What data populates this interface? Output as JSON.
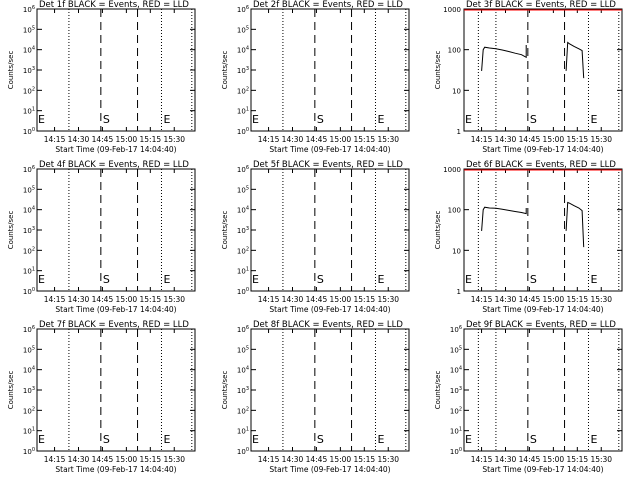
{
  "figure": {
    "time_axis_label": "Start Time (09-Feb-17 14:04:40)",
    "ylabel": "Counts/sec",
    "marker_s": "S",
    "marker_e": "E"
  },
  "chart_data": [
    {
      "detector": "1f",
      "type": "line",
      "title": "Det 1f BLACK = Events, RED = LLD",
      "yscale": "log",
      "ylim": [
        1,
        1000000
      ],
      "ytick_labels": [
        "10^0",
        "10^1",
        "10^2",
        "10^3",
        "10^4",
        "10^5",
        "10^6"
      ],
      "xtick_labels": [
        "14:15",
        "14:30",
        "14:45",
        "15:00",
        "15:15",
        "15:30"
      ],
      "xlim": [
        "14:04",
        "15:43"
      ],
      "dotted_lines": [
        "14:24",
        "15:22",
        "15:41"
      ],
      "dashed_lines": [
        "14:44",
        "15:07"
      ],
      "series": []
    },
    {
      "detector": "2f",
      "type": "line",
      "title": "Det 2f BLACK = Events, RED = LLD",
      "yscale": "log",
      "ylim": [
        1,
        1000000
      ],
      "ytick_labels": [
        "10^0",
        "10^1",
        "10^2",
        "10^3",
        "10^4",
        "10^5",
        "10^6"
      ],
      "xtick_labels": [
        "14:15",
        "14:30",
        "14:45",
        "15:00",
        "15:15",
        "15:30"
      ],
      "xlim": [
        "14:04",
        "15:43"
      ],
      "dotted_lines": [
        "14:24",
        "15:22",
        "15:41"
      ],
      "dashed_lines": [
        "14:44",
        "15:07"
      ],
      "series": []
    },
    {
      "detector": "3f",
      "type": "line",
      "title": "Det 3f BLACK = Events, RED = LLD",
      "yscale": "log",
      "ylim": [
        1,
        1000
      ],
      "ytick_labels": [
        "1",
        "10",
        "100",
        "1000"
      ],
      "xtick_labels": [
        "14:15",
        "14:30",
        "14:45",
        "15:00",
        "15:15",
        "15:30"
      ],
      "xlim": [
        "14:04",
        "15:43"
      ],
      "dotted_lines": [
        "14:13",
        "14:24",
        "15:22",
        "15:41"
      ],
      "dashed_lines": [
        "14:44",
        "15:07"
      ],
      "series": [
        {
          "segments": [
            {
              "x": [
                "14:15",
                "14:16",
                "14:17",
                "14:20",
                "14:24",
                "14:28",
                "14:32",
                "14:36",
                "14:40",
                "14:43",
                "14:43"
              ],
              "y": [
                30,
                100,
                115,
                110,
                105,
                98,
                90,
                82,
                75,
                65,
                130
              ]
            },
            {
              "x": [
                "15:08",
                "15:09",
                "15:10",
                "15:13",
                "15:16",
                "15:18",
                "15:19"
              ],
              "y": [
                30,
                150,
                140,
                120,
                105,
                95,
                20
              ]
            }
          ]
        }
      ]
    },
    {
      "detector": "4f",
      "type": "line",
      "title": "Det 4f BLACK = Events, RED = LLD",
      "yscale": "log",
      "ylim": [
        1,
        1000000
      ],
      "ytick_labels": [
        "10^0",
        "10^1",
        "10^2",
        "10^3",
        "10^4",
        "10^5",
        "10^6"
      ],
      "xtick_labels": [
        "14:15",
        "14:30",
        "14:45",
        "15:00",
        "15:15",
        "15:30"
      ],
      "xlim": [
        "14:04",
        "15:43"
      ],
      "dotted_lines": [
        "14:24",
        "15:22",
        "15:41"
      ],
      "dashed_lines": [
        "14:44",
        "15:07"
      ],
      "series": []
    },
    {
      "detector": "5f",
      "type": "line",
      "title": "Det 5f BLACK = Events, RED = LLD",
      "yscale": "log",
      "ylim": [
        1,
        1000000
      ],
      "ytick_labels": [
        "10^0",
        "10^1",
        "10^2",
        "10^3",
        "10^4",
        "10^5",
        "10^6"
      ],
      "xtick_labels": [
        "14:15",
        "14:30",
        "14:45",
        "15:00",
        "15:15",
        "15:30"
      ],
      "xlim": [
        "14:04",
        "15:43"
      ],
      "dotted_lines": [
        "14:24",
        "15:22",
        "15:41"
      ],
      "dashed_lines": [
        "14:44",
        "15:07"
      ],
      "series": []
    },
    {
      "detector": "6f",
      "type": "line",
      "title": "Det 6f BLACK = Events, RED = LLD",
      "yscale": "log",
      "ylim": [
        1,
        1000
      ],
      "ytick_labels": [
        "1",
        "10",
        "100",
        "1000"
      ],
      "xtick_labels": [
        "14:15",
        "14:30",
        "14:45",
        "15:00",
        "15:15",
        "15:30"
      ],
      "xlim": [
        "14:04",
        "15:43"
      ],
      "dotted_lines": [
        "14:13",
        "14:24",
        "15:22",
        "15:41"
      ],
      "dashed_lines": [
        "14:44",
        "15:07"
      ],
      "series": [
        {
          "segments": [
            {
              "x": [
                "14:15",
                "14:16",
                "14:17",
                "14:20",
                "14:24",
                "14:28",
                "14:32",
                "14:36",
                "14:40",
                "14:43",
                "14:43"
              ],
              "y": [
                30,
                100,
                115,
                110,
                108,
                102,
                96,
                90,
                85,
                80,
                110
              ]
            },
            {
              "x": [
                "15:08",
                "15:09",
                "15:10",
                "15:13",
                "15:16",
                "15:18",
                "15:19"
              ],
              "y": [
                30,
                150,
                145,
                125,
                110,
                95,
                12
              ]
            }
          ]
        }
      ]
    },
    {
      "detector": "7f",
      "type": "line",
      "title": "Det 7f BLACK = Events, RED = LLD",
      "yscale": "log",
      "ylim": [
        1,
        1000000
      ],
      "ytick_labels": [
        "10^0",
        "10^1",
        "10^2",
        "10^3",
        "10^4",
        "10^5",
        "10^6"
      ],
      "xtick_labels": [
        "14:15",
        "14:30",
        "14:45",
        "15:00",
        "15:15",
        "15:30"
      ],
      "xlim": [
        "14:04",
        "15:43"
      ],
      "dotted_lines": [
        "14:24",
        "15:22",
        "15:41"
      ],
      "dashed_lines": [
        "14:44",
        "15:07"
      ],
      "series": []
    },
    {
      "detector": "8f",
      "type": "line",
      "title": "Det 8f BLACK = Events, RED = LLD",
      "yscale": "log",
      "ylim": [
        1,
        1000000
      ],
      "ytick_labels": [
        "10^0",
        "10^1",
        "10^2",
        "10^3",
        "10^4",
        "10^5",
        "10^6"
      ],
      "xtick_labels": [
        "14:15",
        "14:30",
        "14:45",
        "15:00",
        "15:15",
        "15:30"
      ],
      "xlim": [
        "14:04",
        "15:43"
      ],
      "dotted_lines": [
        "14:24",
        "15:22",
        "15:41"
      ],
      "dashed_lines": [
        "14:44",
        "15:07"
      ],
      "series": []
    },
    {
      "detector": "9f",
      "type": "line",
      "title": "Det 9f BLACK = Events, RED = LLD",
      "yscale": "log",
      "ylim": [
        1,
        1000000
      ],
      "ytick_labels": [
        "10^0",
        "10^1",
        "10^2",
        "10^3",
        "10^4",
        "10^5",
        "10^6"
      ],
      "xtick_labels": [
        "14:15",
        "14:30",
        "14:45",
        "15:00",
        "15:15",
        "15:30"
      ],
      "xlim": [
        "14:04",
        "15:43"
      ],
      "dotted_lines": [
        "14:13",
        "14:24",
        "15:22",
        "15:41"
      ],
      "dashed_lines": [
        "14:44",
        "15:07"
      ],
      "series": []
    }
  ]
}
